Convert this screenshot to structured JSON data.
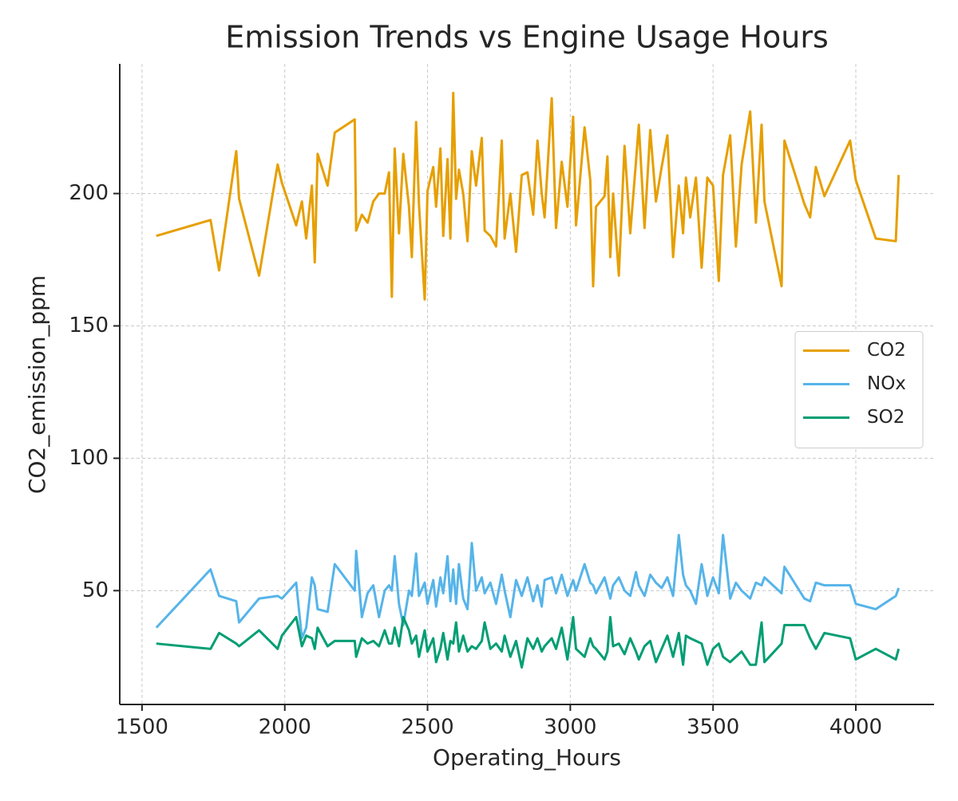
{
  "chart_data": {
    "type": "line",
    "title": "Emission Trends vs Engine Usage Hours",
    "x_label": "Operating_Hours",
    "y_label": "CO2_emission_ppm",
    "x": [
      1550,
      1740,
      1770,
      1830,
      1840,
      1910,
      1975,
      1990,
      2040,
      2060,
      2075,
      2095,
      2105,
      2115,
      2150,
      2175,
      2245,
      2250,
      2270,
      2290,
      2310,
      2330,
      2350,
      2365,
      2375,
      2385,
      2400,
      2415,
      2435,
      2445,
      2460,
      2470,
      2490,
      2500,
      2520,
      2530,
      2545,
      2555,
      2570,
      2580,
      2590,
      2600,
      2610,
      2625,
      2640,
      2655,
      2670,
      2690,
      2700,
      2720,
      2740,
      2760,
      2770,
      2790,
      2810,
      2830,
      2850,
      2870,
      2885,
      2900,
      2910,
      2935,
      2950,
      2970,
      2990,
      3010,
      3020,
      3050,
      3070,
      3080,
      3090,
      3120,
      3130,
      3140,
      3150,
      3170,
      3190,
      3210,
      3230,
      3240,
      3260,
      3280,
      3300,
      3320,
      3340,
      3360,
      3380,
      3395,
      3405,
      3420,
      3440,
      3460,
      3480,
      3500,
      3520,
      3535,
      3560,
      3580,
      3600,
      3630,
      3650,
      3670,
      3680,
      3740,
      3750,
      3820,
      3840,
      3860,
      3890,
      3980,
      4000,
      4070,
      4140,
      4150
    ],
    "series": [
      {
        "name": "CO2",
        "color": "#E69F00",
        "values": [
          184,
          190,
          171,
          216,
          198,
          169,
          211,
          204,
          188,
          197,
          183,
          203,
          174,
          215,
          203,
          223,
          228,
          186,
          192,
          189,
          197,
          200,
          200,
          208,
          161,
          217,
          185,
          215,
          195,
          176,
          227,
          196,
          160,
          201,
          210,
          195,
          217,
          184,
          213,
          183,
          238,
          198,
          209,
          200,
          182,
          216,
          203,
          221,
          186,
          184,
          180,
          220,
          183,
          200,
          178,
          207,
          208,
          192,
          220,
          200,
          191,
          236,
          187,
          212,
          195,
          229,
          188,
          225,
          205,
          165,
          195,
          199,
          214,
          176,
          200,
          169,
          218,
          185,
          212,
          226,
          187,
          224,
          197,
          210,
          222,
          176,
          203,
          185,
          206,
          191,
          206,
          172,
          206,
          203,
          167,
          207,
          222,
          180,
          211,
          231,
          189,
          226,
          197,
          165,
          220,
          196,
          191,
          210,
          199,
          220,
          205,
          183,
          182,
          207
        ]
      },
      {
        "name": "NOx",
        "color": "#56B4E9",
        "values": [
          36,
          58,
          48,
          46,
          38,
          47,
          48,
          47,
          53,
          32,
          36,
          55,
          52,
          43,
          42,
          60,
          50,
          65,
          40,
          49,
          52,
          40,
          50,
          52,
          50,
          63,
          45,
          37,
          50,
          48,
          64,
          48,
          53,
          45,
          54,
          44,
          55,
          49,
          63,
          46,
          58,
          45,
          60,
          47,
          43,
          68,
          50,
          55,
          49,
          53,
          45,
          56,
          50,
          40,
          54,
          48,
          55,
          46,
          52,
          44,
          54,
          55,
          49,
          56,
          48,
          54,
          50,
          60,
          53,
          52,
          49,
          55,
          51,
          47,
          52,
          55,
          50,
          48,
          57,
          52,
          48,
          56,
          53,
          51,
          55,
          48,
          71,
          56,
          52,
          50,
          45,
          60,
          48,
          55,
          49,
          71,
          47,
          53,
          50,
          47,
          53,
          52,
          55,
          49,
          59,
          47,
          46,
          53,
          52,
          52,
          45,
          43,
          48,
          51
        ]
      },
      {
        "name": "SO2",
        "color": "#009E73",
        "values": [
          30,
          28,
          34,
          30,
          29,
          35,
          28,
          33,
          40,
          29,
          33,
          32,
          28,
          36,
          29,
          31,
          31,
          25,
          32,
          30,
          31,
          29,
          35,
          30,
          30,
          36,
          29,
          40,
          35,
          30,
          33,
          25,
          35,
          27,
          32,
          23,
          28,
          34,
          24,
          31,
          30,
          38,
          27,
          33,
          27,
          29,
          28,
          31,
          38,
          28,
          30,
          27,
          33,
          25,
          31,
          21,
          32,
          28,
          32,
          27,
          29,
          32,
          28,
          36,
          24,
          40,
          28,
          25,
          32,
          29,
          28,
          24,
          27,
          40,
          29,
          30,
          26,
          32,
          27,
          24,
          29,
          31,
          23,
          28,
          33,
          25,
          34,
          22,
          33,
          32,
          31,
          30,
          22,
          28,
          30,
          25,
          23,
          25,
          27,
          22,
          22,
          38,
          23,
          30,
          37,
          37,
          32,
          28,
          34,
          32,
          24,
          28,
          24,
          28
        ]
      }
    ],
    "xlim": [
      1422,
      4274
    ],
    "ylim": [
      7,
      249
    ],
    "xticks": [
      1500,
      2000,
      2500,
      3000,
      3500,
      4000
    ],
    "yticks": [
      50,
      100,
      150,
      200
    ],
    "grid": true,
    "legend": "center right"
  }
}
